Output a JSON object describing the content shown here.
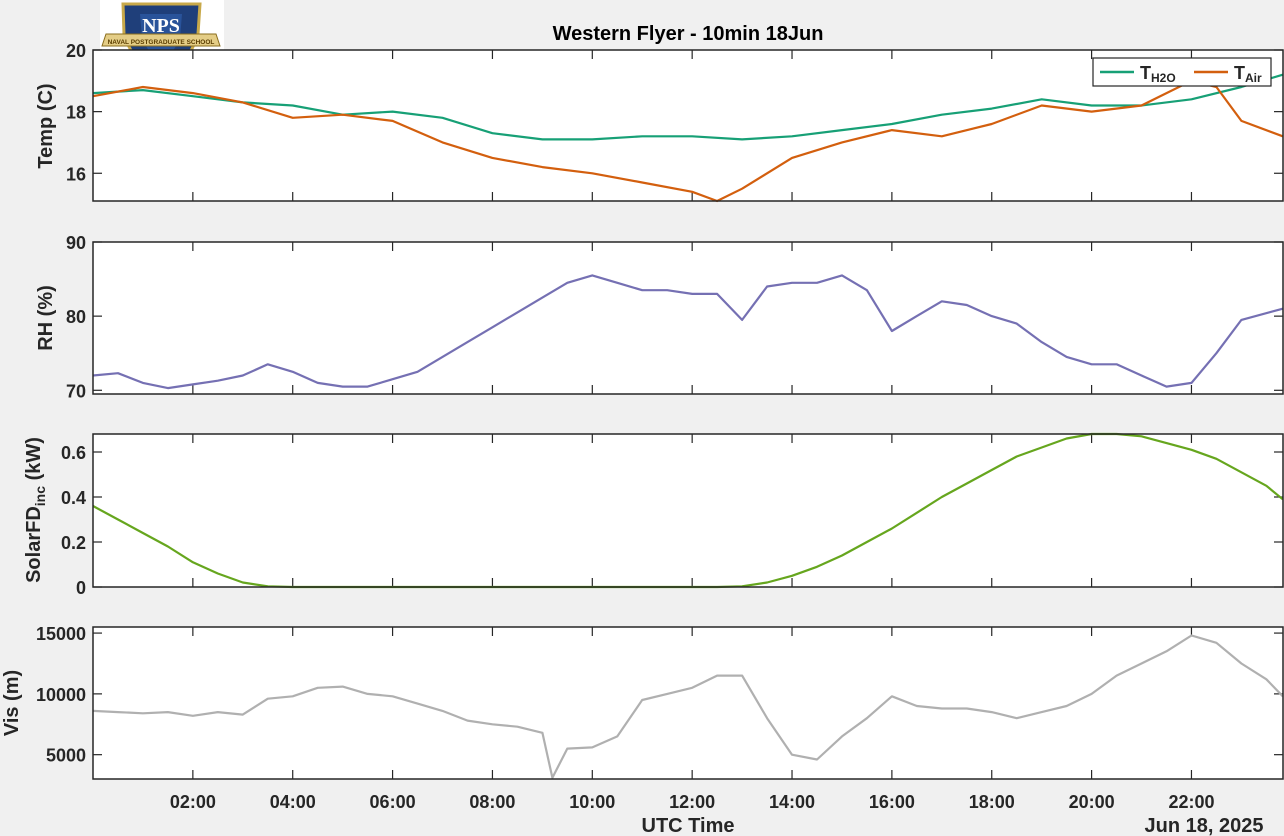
{
  "title": "Western Flyer - 10min 18Jun",
  "logo": {
    "text": "NPS",
    "banner": "NAVAL POSTGRADUATE SCHOOL"
  },
  "x_axis": {
    "label": "UTC Time",
    "date_label": "Jun 18, 2025",
    "range": [
      "00:00",
      "23:50"
    ],
    "ticks": [
      "02:00",
      "04:00",
      "06:00",
      "08:00",
      "10:00",
      "12:00",
      "14:00",
      "16:00",
      "18:00",
      "20:00",
      "22:00"
    ]
  },
  "legend": {
    "items": [
      {
        "main": "T",
        "sub": "H2O"
      },
      {
        "main": "T",
        "sub": "Air"
      }
    ],
    "placement": "top-right"
  },
  "colors": {
    "t_h2o": "#17a076",
    "t_air": "#d35f0e",
    "rh": "#7570b3",
    "solar": "#66a61e",
    "vis": "#b0b0b0",
    "plot_bg": "#ffffff",
    "figure_bg": "#f0f0f0"
  },
  "chart_data": [
    {
      "type": "line",
      "ylabel": "Temp (C)",
      "ylim": [
        15.1,
        20
      ],
      "yticks": [
        "16",
        "18",
        "20"
      ],
      "series": [
        {
          "name": "TH2O",
          "x": [
            0,
            1,
            2,
            3,
            4,
            5,
            6,
            7,
            8,
            9,
            10,
            11,
            12,
            13,
            14,
            15,
            16,
            17,
            18,
            19,
            20,
            21,
            22,
            23,
            23.83
          ],
          "values": [
            18.6,
            18.7,
            18.5,
            18.3,
            18.2,
            17.9,
            18.0,
            17.8,
            17.3,
            17.1,
            17.1,
            17.2,
            17.2,
            17.1,
            17.2,
            17.4,
            17.6,
            17.9,
            18.1,
            18.4,
            18.2,
            18.2,
            18.4,
            18.8,
            19.2
          ]
        },
        {
          "name": "TAir",
          "x": [
            0,
            1,
            2,
            3,
            4,
            5,
            6,
            7,
            8,
            9,
            10,
            11,
            12,
            12.5,
            13,
            14,
            15,
            16,
            17,
            18,
            19,
            20,
            21,
            21.5,
            22,
            22.5,
            23,
            23.83
          ],
          "values": [
            18.5,
            18.8,
            18.6,
            18.3,
            17.8,
            17.9,
            17.7,
            17.0,
            16.5,
            16.2,
            16.0,
            15.7,
            15.4,
            15.1,
            15.5,
            16.5,
            17.0,
            17.4,
            17.2,
            17.6,
            18.2,
            18.0,
            18.2,
            18.6,
            19.0,
            18.8,
            17.7,
            17.2
          ]
        }
      ]
    },
    {
      "type": "line",
      "ylabel": "RH (%)",
      "ylim": [
        69.5,
        90
      ],
      "yticks": [
        "70",
        "80",
        "90"
      ],
      "series": [
        {
          "name": "RH",
          "x": [
            0,
            0.5,
            1,
            1.5,
            2,
            2.5,
            3,
            3.5,
            4,
            4.5,
            5,
            5.5,
            6,
            6.5,
            7,
            7.5,
            8,
            8.5,
            9,
            9.5,
            10,
            10.5,
            11,
            11.5,
            12,
            12.5,
            13,
            13.5,
            14,
            14.5,
            15,
            15.5,
            16,
            16.5,
            17,
            17.5,
            18,
            18.5,
            19,
            19.5,
            20,
            20.5,
            21,
            21.5,
            22,
            22.5,
            23,
            23.83
          ],
          "values": [
            72,
            72.3,
            71.0,
            70.3,
            70.8,
            71.3,
            72.0,
            73.5,
            72.5,
            71.0,
            70.5,
            70.5,
            71.5,
            72.5,
            74.5,
            76.5,
            78.5,
            80.5,
            82.5,
            84.5,
            85.5,
            84.5,
            83.5,
            83.5,
            83.0,
            83.0,
            79.5,
            84.0,
            84.5,
            84.5,
            85.5,
            83.5,
            78.0,
            80.0,
            82.0,
            81.5,
            80.0,
            79.0,
            76.5,
            74.5,
            73.5,
            73.5,
            72.0,
            70.5,
            71.0,
            75.0,
            79.5,
            81.0
          ]
        }
      ]
    },
    {
      "type": "line",
      "ylabel_main": "SolarFD",
      "ylabel_sub": "inc",
      "ylabel_unit": " (kW)",
      "ylim": [
        0,
        0.68
      ],
      "yticks": [
        "0",
        "0.2",
        "0.4",
        "0.6"
      ],
      "series": [
        {
          "name": "SolarFD_inc",
          "x": [
            0,
            0.5,
            1,
            1.5,
            2,
            2.5,
            3,
            3.5,
            4,
            12.5,
            13,
            13.5,
            14,
            14.5,
            15,
            15.5,
            16,
            16.5,
            17,
            17.5,
            18,
            18.5,
            19,
            19.5,
            20,
            20.5,
            21,
            21.5,
            22,
            22.5,
            23,
            23.5,
            23.83
          ],
          "values": [
            0.36,
            0.3,
            0.24,
            0.18,
            0.11,
            0.06,
            0.02,
            0.003,
            0,
            0,
            0.003,
            0.02,
            0.05,
            0.09,
            0.14,
            0.2,
            0.26,
            0.33,
            0.4,
            0.46,
            0.52,
            0.58,
            0.62,
            0.66,
            0.68,
            0.68,
            0.67,
            0.64,
            0.61,
            0.57,
            0.51,
            0.45,
            0.39
          ]
        }
      ]
    },
    {
      "type": "line",
      "ylabel": "Vis (m)",
      "ylim": [
        3000,
        15500
      ],
      "yticks": [
        "5000",
        "10000",
        "15000"
      ],
      "series": [
        {
          "name": "Vis",
          "x": [
            0,
            0.5,
            1,
            1.5,
            2,
            2.5,
            3,
            3.5,
            4,
            4.5,
            5,
            5.5,
            6,
            6.5,
            7,
            7.5,
            8,
            8.5,
            9,
            9.2,
            9.5,
            10,
            10.5,
            11,
            11.5,
            12,
            12.5,
            13,
            13.5,
            14,
            14.5,
            15,
            15.5,
            16,
            16.5,
            17,
            17.5,
            18,
            18.5,
            19,
            19.5,
            20,
            20.5,
            21,
            21.5,
            22,
            22.5,
            23,
            23.5,
            23.83
          ],
          "values": [
            8600,
            8500,
            8400,
            8500,
            8200,
            8500,
            8300,
            9600,
            9800,
            10500,
            10600,
            10000,
            9800,
            9200,
            8600,
            7800,
            7500,
            7300,
            6800,
            3100,
            5500,
            5600,
            6500,
            9500,
            10000,
            10500,
            11500,
            11500,
            8000,
            5000,
            4600,
            6500,
            8000,
            9800,
            9000,
            8800,
            8800,
            8500,
            8000,
            8500,
            9000,
            10000,
            11500,
            12500,
            13500,
            14800,
            14200,
            12500,
            11200,
            9800
          ]
        }
      ]
    }
  ]
}
